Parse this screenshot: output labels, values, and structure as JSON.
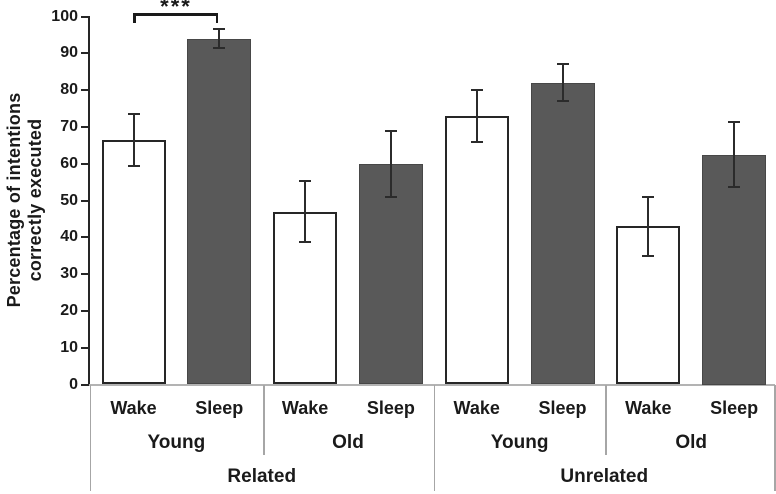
{
  "chart_data": {
    "type": "bar",
    "title": "",
    "ylabel_lines": [
      "Percentage of intentions",
      "correctly executed"
    ],
    "ylim": [
      0,
      100
    ],
    "ytick_step": 10,
    "yticks": [
      0,
      10,
      20,
      30,
      40,
      50,
      60,
      70,
      80,
      90,
      100
    ],
    "grid": false,
    "legend": "none",
    "condition_labels": [
      "Wake",
      "Sleep"
    ],
    "groups": [
      {
        "label": "Related",
        "subgroups": [
          {
            "label": "Young",
            "bars": [
              {
                "condition": "Wake",
                "value": 66.5,
                "error": 7.0
              },
              {
                "condition": "Sleep",
                "value": 94.0,
                "error": 2.6
              }
            ]
          },
          {
            "label": "Old",
            "bars": [
              {
                "condition": "Wake",
                "value": 47.0,
                "error": 8.2
              },
              {
                "condition": "Sleep",
                "value": 60.0,
                "error": 9.0
              }
            ]
          }
        ]
      },
      {
        "label": "Unrelated",
        "subgroups": [
          {
            "label": "Young",
            "bars": [
              {
                "condition": "Wake",
                "value": 73.0,
                "error": 7.0
              },
              {
                "condition": "Sleep",
                "value": 82.0,
                "error": 5.0
              }
            ]
          },
          {
            "label": "Old",
            "bars": [
              {
                "condition": "Wake",
                "value": 43.0,
                "error": 8.0
              },
              {
                "condition": "Sleep",
                "value": 62.5,
                "error": 8.8
              }
            ]
          }
        ]
      }
    ],
    "significance": {
      "label": "***",
      "between": [
        "Related-Young-Wake",
        "Related-Young-Sleep"
      ]
    },
    "colors": {
      "wake_fill": "#ffffff",
      "sleep_fill": "#595959",
      "bar_border": "#262626",
      "sleep_border": "#474747",
      "error_bar": "#2b2b2b",
      "axis": "#262626",
      "baseline": "#b3b3b3",
      "separator": "#a6a6a6",
      "text": "#1a1a1a"
    }
  }
}
